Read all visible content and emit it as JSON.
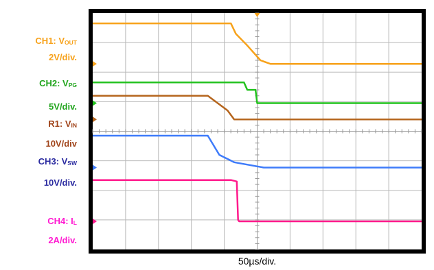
{
  "chart_data": {
    "type": "line",
    "xlabel": "50µs/div.",
    "grid": true,
    "divisions": {
      "x": 10,
      "y": 8
    },
    "x_range_div": [
      0,
      10
    ],
    "y_range_div": [
      0,
      8
    ],
    "channels": [
      {
        "id": "ch1",
        "label": "CH1: V",
        "sub": "OUT",
        "scale": "2V/div.",
        "color": "#F7A21B",
        "points": [
          [
            0,
            7.65
          ],
          [
            4.2,
            7.65
          ],
          [
            4.35,
            7.3
          ],
          [
            4.7,
            6.9
          ],
          [
            5.1,
            6.4
          ],
          [
            5.4,
            6.28
          ],
          [
            10,
            6.28
          ]
        ]
      },
      {
        "id": "ch2",
        "label": "CH2: V",
        "sub": "PG",
        "scale": "5V/div.",
        "color": "#22C21E",
        "points": [
          [
            0,
            5.65
          ],
          [
            4.6,
            5.65
          ],
          [
            4.7,
            5.4
          ],
          [
            4.95,
            5.4
          ],
          [
            5.0,
            4.95
          ],
          [
            10,
            4.95
          ]
        ]
      },
      {
        "id": "r1",
        "label": "R1: V",
        "sub": "IN",
        "scale": "10V/div",
        "color": "#B5651D",
        "points": [
          [
            0,
            5.2
          ],
          [
            3.5,
            5.2
          ],
          [
            4.1,
            4.7
          ],
          [
            4.3,
            4.4
          ],
          [
            10,
            4.4
          ]
        ]
      },
      {
        "id": "ch3",
        "label": "CH3: V",
        "sub": "SW",
        "scale": "10V/div.",
        "color": "#3E7BFA",
        "points": [
          [
            0,
            3.85
          ],
          [
            3.5,
            3.85
          ],
          [
            3.85,
            3.2
          ],
          [
            4.3,
            2.95
          ],
          [
            5.2,
            2.77
          ],
          [
            10,
            2.77
          ]
        ]
      },
      {
        "id": "ch4",
        "label": "CH4: I",
        "sub": "L",
        "scale": "2A/div.",
        "color": "#FF1A8C",
        "points": [
          [
            0,
            2.35
          ],
          [
            4.2,
            2.35
          ],
          [
            4.38,
            2.3
          ],
          [
            4.42,
            1.0
          ],
          [
            4.45,
            0.95
          ],
          [
            10,
            0.95
          ]
        ]
      }
    ]
  }
}
